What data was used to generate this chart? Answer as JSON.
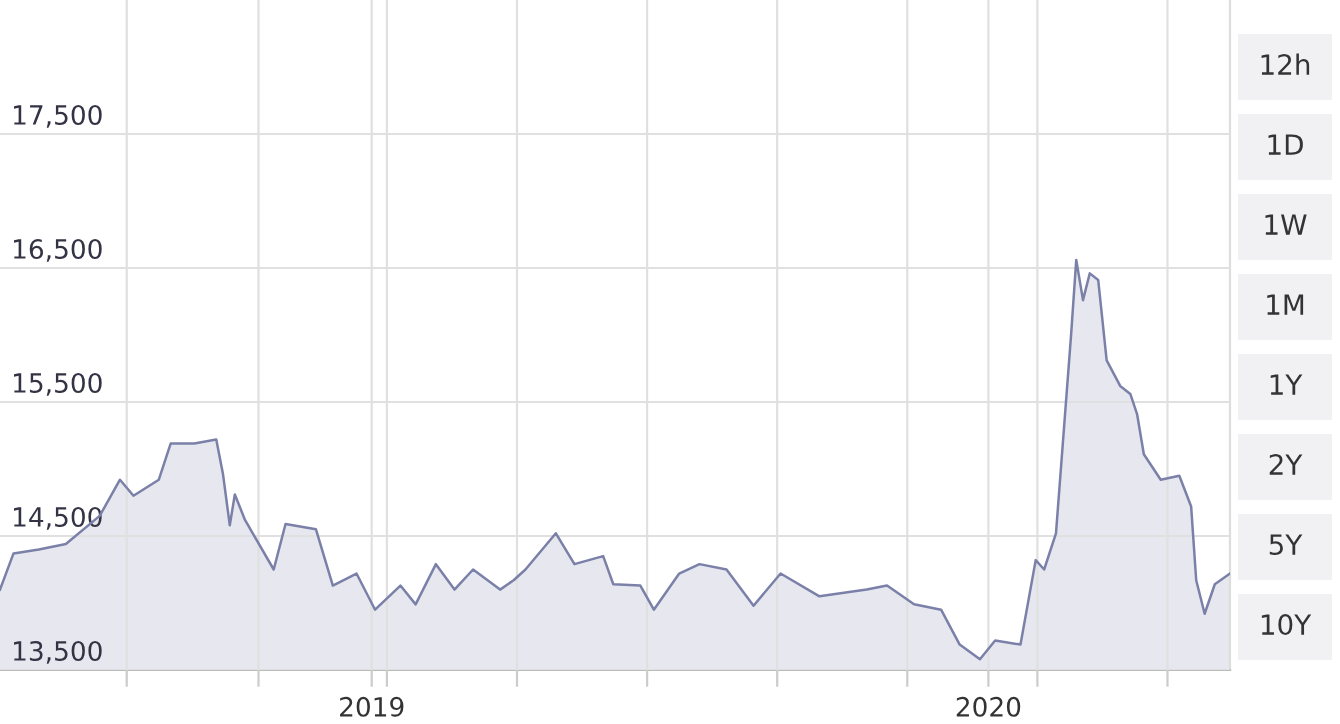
{
  "chart_data": {
    "type": "area",
    "color": "#7b80a8",
    "x": [
      "2018-05-26",
      "2018-06-03",
      "2018-06-18",
      "2018-07-04",
      "2018-07-24",
      "2018-08-05",
      "2018-08-13",
      "2018-08-28",
      "2018-09-04",
      "2018-09-18",
      "2018-10-01",
      "2018-10-05",
      "2018-10-09",
      "2018-10-12",
      "2018-10-18",
      "2018-11-04",
      "2018-11-11",
      "2018-11-29",
      "2018-12-09",
      "2018-12-23",
      "2019-01-03",
      "2019-01-18",
      "2019-01-27",
      "2019-02-08",
      "2019-02-19",
      "2019-03-02",
      "2019-03-18",
      "2019-03-26",
      "2019-04-02",
      "2019-04-20",
      "2019-05-01",
      "2019-05-18",
      "2019-05-24",
      "2019-06-09",
      "2019-06-17",
      "2019-07-02",
      "2019-07-14",
      "2019-07-30",
      "2019-08-15",
      "2019-08-31",
      "2019-09-23",
      "2019-10-21",
      "2019-11-02",
      "2019-11-18",
      "2019-12-04",
      "2019-12-15",
      "2019-12-27",
      "2020-01-05",
      "2020-01-20",
      "2020-01-29",
      "2020-02-03",
      "2020-02-10",
      "2020-02-19",
      "2020-02-22",
      "2020-02-26",
      "2020-03-01",
      "2020-03-06",
      "2020-03-11",
      "2020-03-19",
      "2020-03-25",
      "2020-03-29",
      "2020-04-02",
      "2020-04-12",
      "2020-04-23",
      "2020-04-30",
      "2020-05-03",
      "2020-05-08",
      "2020-05-14",
      "2020-05-23"
    ],
    "values": [
      14100,
      14370,
      14400,
      14440,
      14650,
      14920,
      14800,
      14920,
      15190,
      15190,
      15220,
      14960,
      14580,
      14810,
      14620,
      14250,
      14590,
      14550,
      14130,
      14220,
      13950,
      14130,
      13990,
      14290,
      14100,
      14250,
      14100,
      14170,
      14250,
      14520,
      14290,
      14350,
      14140,
      14130,
      13950,
      14220,
      14290,
      14250,
      13980,
      14220,
      14050,
      14100,
      14130,
      13990,
      13950,
      13690,
      13580,
      13720,
      13690,
      14320,
      14250,
      14520,
      16010,
      16560,
      16260,
      16460,
      16410,
      15810,
      15620,
      15560,
      15410,
      15110,
      14920,
      14950,
      14720,
      14170,
      13920,
      14140,
      14220
    ],
    "xlim": [
      "2018-05-26",
      "2020-05-23"
    ],
    "xticks": [
      {
        "value": "2018-08-09",
        "label": null
      },
      {
        "value": "2018-10-26",
        "label": null
      },
      {
        "value": "2019-01-01",
        "label": "2019"
      },
      {
        "value": "2019-01-10",
        "label": null
      },
      {
        "value": "2019-03-28",
        "label": null
      },
      {
        "value": "2019-06-13",
        "label": null
      },
      {
        "value": "2019-08-29",
        "label": null
      },
      {
        "value": "2019-11-14",
        "label": null
      },
      {
        "value": "2020-01-01",
        "label": "2020"
      },
      {
        "value": "2020-01-30",
        "label": null
      },
      {
        "value": "2020-04-16",
        "label": null
      }
    ],
    "ylim": [
      13500,
      18500
    ],
    "yticks": [
      {
        "value": 13500,
        "label": "13,500"
      },
      {
        "value": 14500,
        "label": "14,500"
      },
      {
        "value": 15500,
        "label": "15,500"
      },
      {
        "value": 16500,
        "label": "16,500"
      },
      {
        "value": 17500,
        "label": "17,500"
      }
    ],
    "grid": true,
    "annotations": [
      "12h",
      "1D",
      "1W",
      "1M",
      "1Y",
      "2Y",
      "5Y",
      "10Y"
    ]
  }
}
